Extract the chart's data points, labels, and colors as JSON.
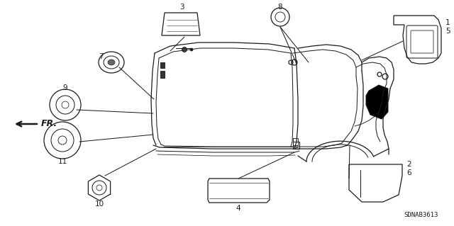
{
  "bg_color": "#ffffff",
  "diagram_code": "SDNAB3613",
  "fr_label": "FR.",
  "line_color": "#1a1a1a",
  "text_color": "#1a1a1a",
  "lw": 0.9
}
